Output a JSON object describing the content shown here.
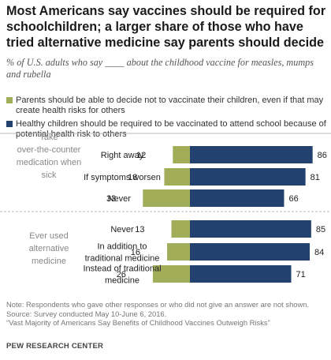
{
  "title": "Most Americans say vaccines should be required for schoolchildren; a larger share of those who have tried alternative medicine say parents should decide",
  "subtitle": "% of U.S. adults who say ____ about the childhood vaccine for measles, mumps and rubella",
  "legend": {
    "parents": "Parents should be able to decide not to vaccinate their children, even if that may create health risks for others",
    "required": "Healthy children should be required to be vaccinated to attend school because of potential health risk to others"
  },
  "colors": {
    "parents": "#a2ad5a",
    "required": "#22416f"
  },
  "chart_data": {
    "type": "bar",
    "stacked": true,
    "orientation": "horizontal",
    "groups": [
      {
        "label": "Take over-the-counter medication when sick",
        "rows": [
          {
            "label": "Right away",
            "parents": 12,
            "required": 86
          },
          {
            "label": "If symptoms worsen",
            "parents": 18,
            "required": 81
          },
          {
            "label": "Never",
            "parents": 33,
            "required": 66
          }
        ]
      },
      {
        "label": "Ever used alternative medicine",
        "rows": [
          {
            "label": "Never",
            "parents": 13,
            "required": 85
          },
          {
            "label": "In addition to traditional medicine",
            "parents": 16,
            "required": 84
          },
          {
            "label": "Instead of traditional medicine",
            "parents": 26,
            "required": 71
          }
        ]
      }
    ],
    "series": [
      {
        "name": "Parents should be able to decide not to vaccinate their children, even if that may create health risks for others",
        "key": "parents"
      },
      {
        "name": "Healthy children should be required to be vaccinated to attend school because of potential health risk to others",
        "key": "required"
      }
    ]
  },
  "footer": {
    "note": "Note: Respondents who gave other responses or who did not give an answer are not shown.",
    "source": "Source: Survey conducted May 10-June 6, 2016.",
    "report": "“Vast Majority of Americans Say Benefits of Childhood Vaccines Outweigh Risks”",
    "org": "PEW RESEARCH CENTER"
  }
}
